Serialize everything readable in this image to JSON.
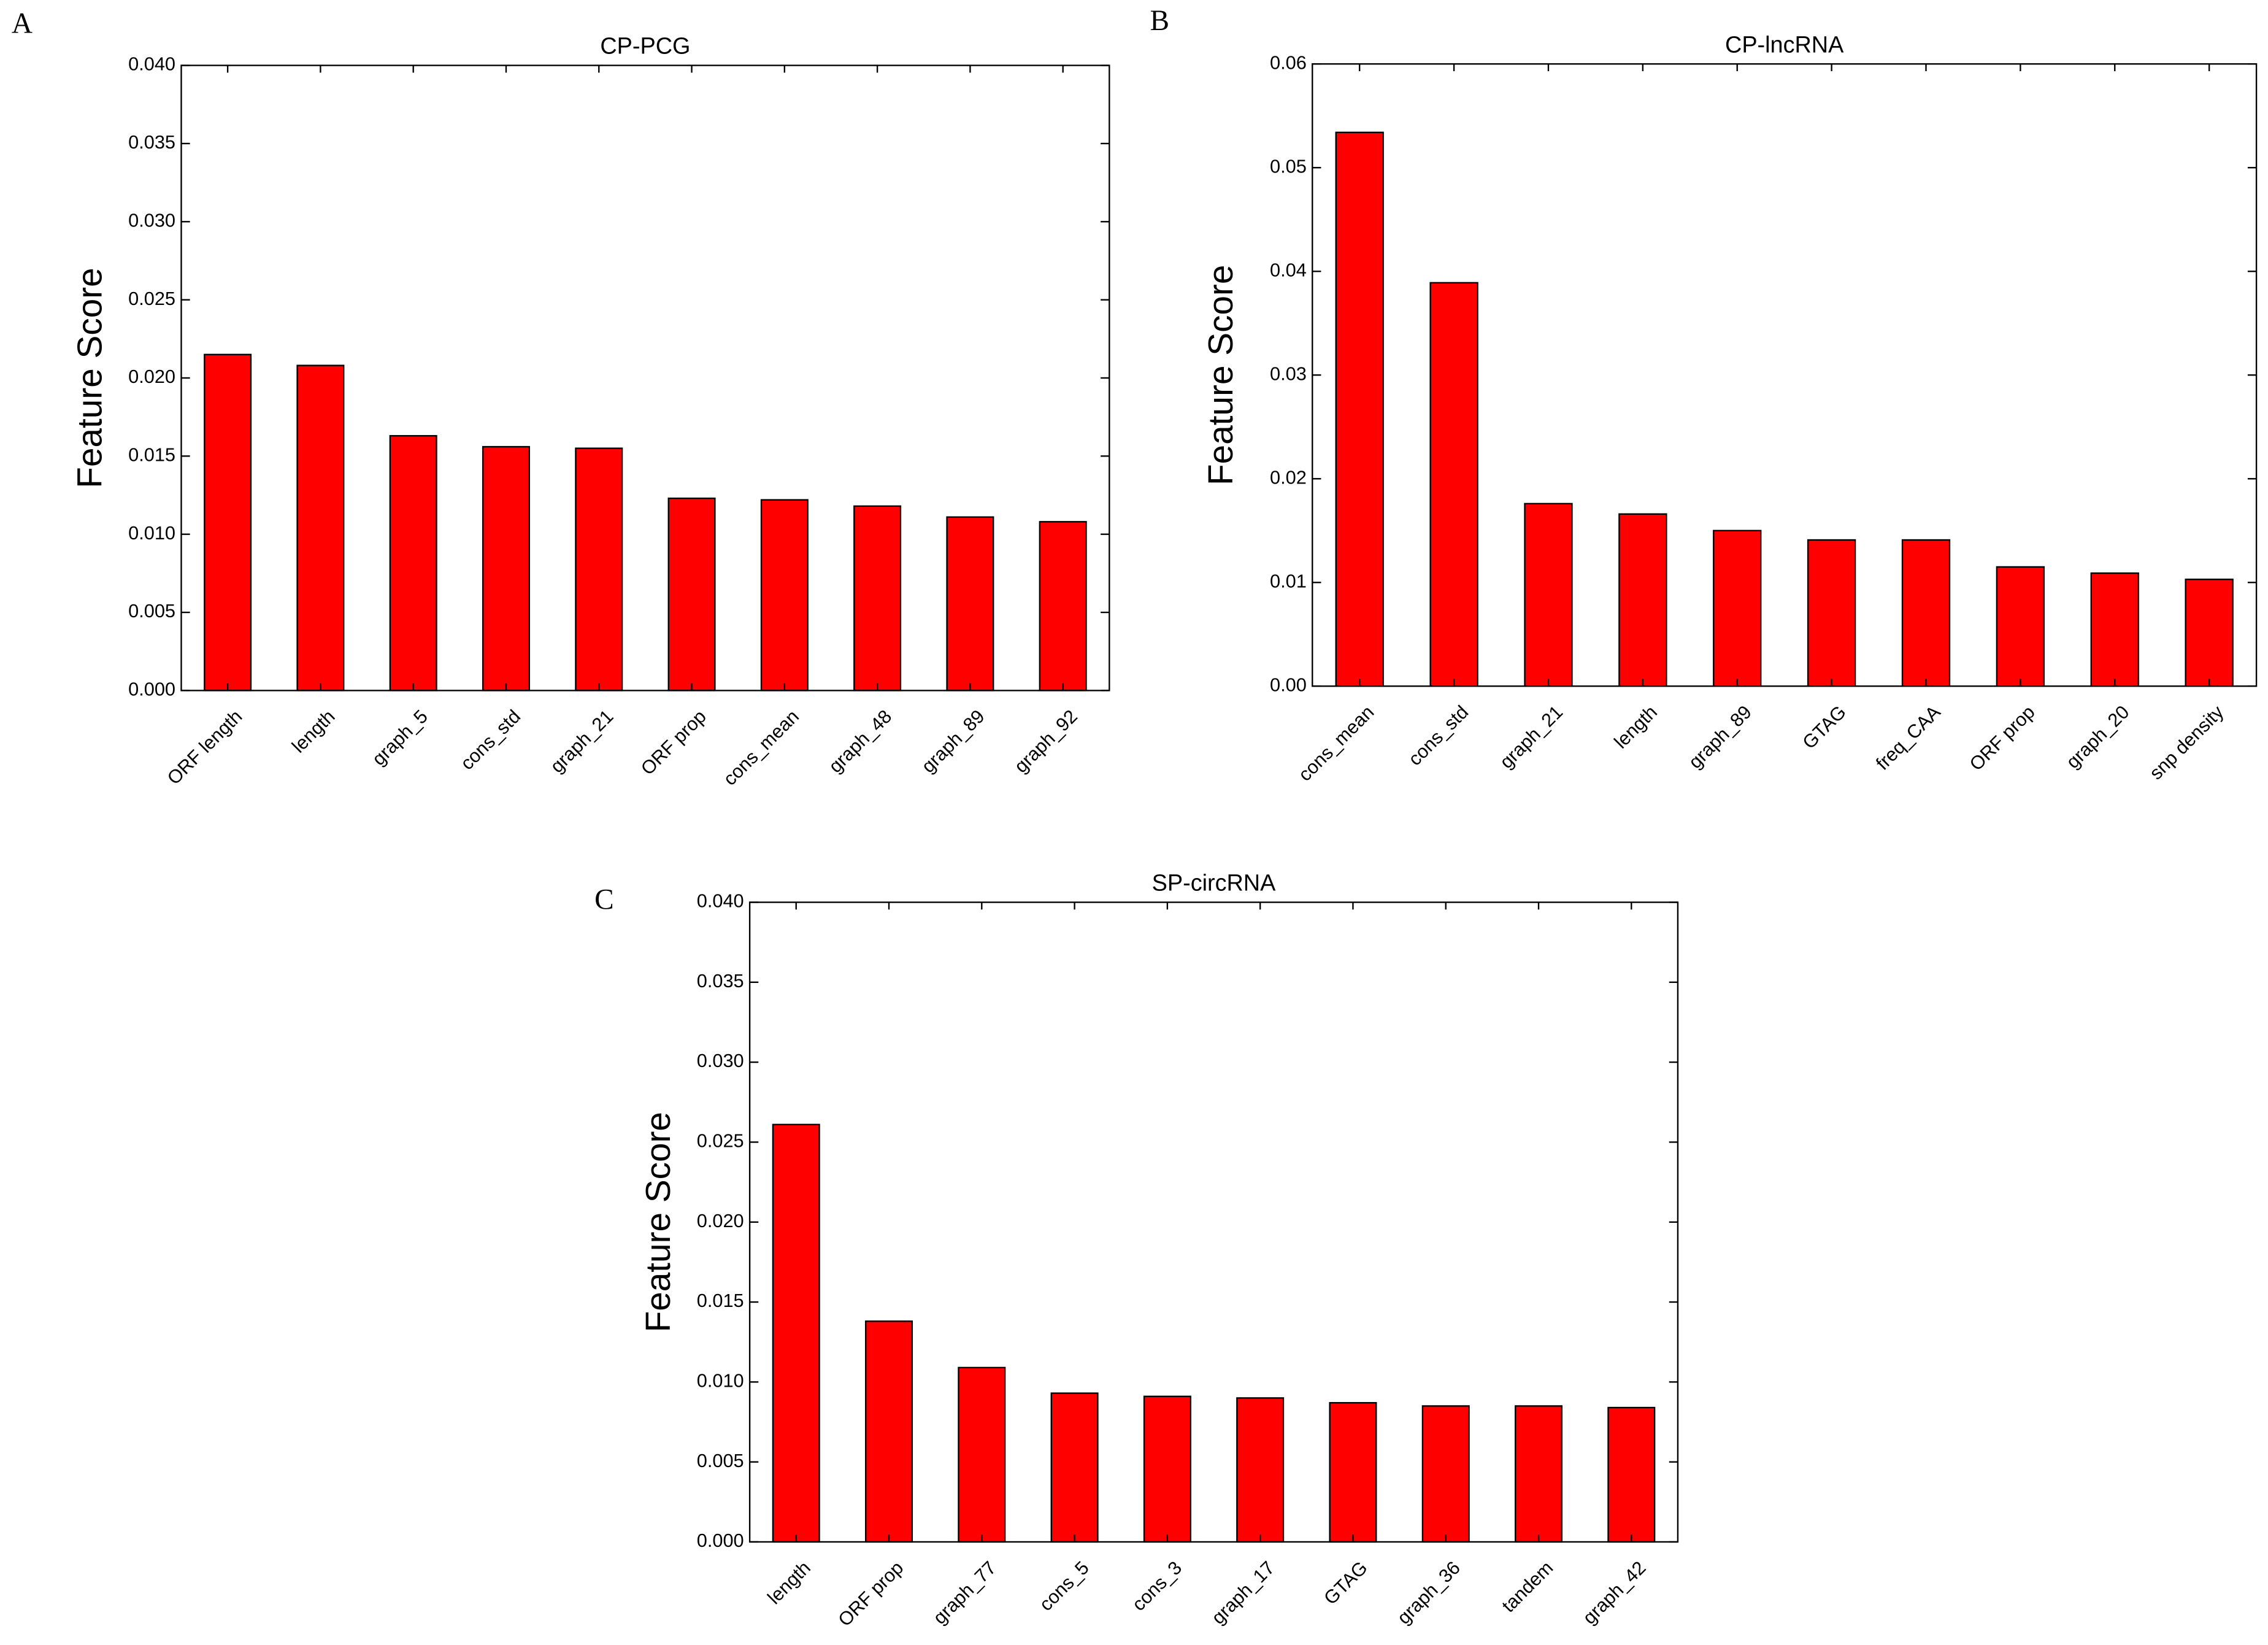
{
  "chart_data": [
    {
      "type": "bar",
      "label": "A",
      "title": "CP-PCG",
      "ylabel": "Feature Score",
      "color": "#ff0000",
      "categories": [
        "ORF length",
        "length",
        "graph_5",
        "cons_std",
        "graph_21",
        "ORF prop",
        "cons_mean",
        "graph_48",
        "graph_89",
        "graph_92"
      ],
      "values": [
        0.0215,
        0.0208,
        0.0163,
        0.0156,
        0.0155,
        0.0123,
        0.0122,
        0.0118,
        0.0111,
        0.0108
      ],
      "ylim": [
        0,
        0.04
      ],
      "yticks": [
        {
          "value": 0,
          "label": "0.000"
        },
        0.005,
        {
          "value": 0.01,
          "label": "0.010"
        },
        0.015,
        {
          "value": 0.02,
          "label": "0.020"
        },
        0.025,
        {
          "value": 0.03,
          "label": "0.030"
        },
        0.035,
        {
          "value": 0.04,
          "label": "0.040"
        }
      ]
    },
    {
      "type": "bar",
      "label": "B",
      "title": "CP-lncRNA",
      "ylabel": "Feature Score",
      "color": "#ff0000",
      "categories": [
        "cons_mean",
        "cons_std",
        "graph_21",
        "length",
        "graph_89",
        "GTAG",
        "freq_CAA",
        "ORF prop",
        "graph_20",
        "snp density"
      ],
      "values": [
        0.0534,
        0.0389,
        0.0176,
        0.0166,
        0.015,
        0.0141,
        0.0141,
        0.0115,
        0.0109,
        0.0103
      ],
      "ylim": [
        0,
        0.06
      ],
      "yticks": [
        {
          "value": 0,
          "label": "0.00"
        },
        0.01,
        0.02,
        0.03,
        0.04,
        0.05,
        0.06
      ]
    },
    {
      "type": "bar",
      "label": "C",
      "title": "SP-circRNA",
      "ylabel": "Feature Score",
      "color": "#ff0000",
      "categories": [
        "length",
        "ORF prop",
        "graph_77",
        "cons_5",
        "cons_3",
        "graph_17",
        "GTAG",
        "graph_36",
        "tandem",
        "graph_42"
      ],
      "values": [
        0.0261,
        0.0138,
        0.0109,
        0.0093,
        0.0091,
        0.009,
        0.0087,
        0.0085,
        0.0085,
        0.0084
      ],
      "ylim": [
        0,
        0.04
      ],
      "yticks": [
        {
          "value": 0,
          "label": "0.000"
        },
        0.005,
        {
          "value": 0.01,
          "label": "0.010"
        },
        0.015,
        {
          "value": 0.02,
          "label": "0.020"
        },
        0.025,
        {
          "value": 0.03,
          "label": "0.030"
        },
        0.035,
        {
          "value": 0.04,
          "label": "0.040"
        }
      ]
    }
  ]
}
